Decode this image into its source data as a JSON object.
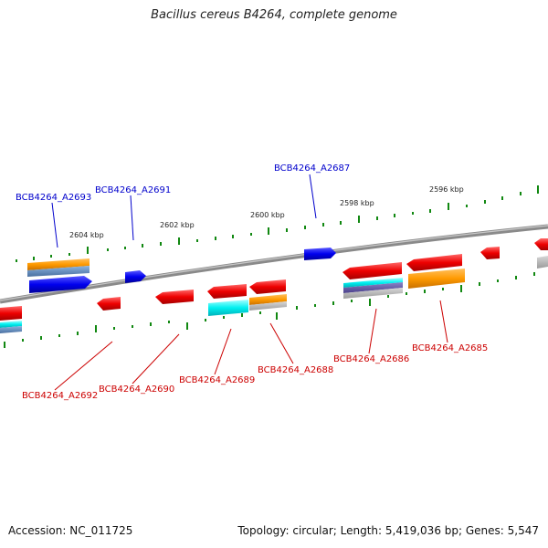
{
  "title": "Bacillus cereus B4264, complete genome",
  "footer": {
    "accession": "Accession: NC_011725",
    "summary": "Topology: circular; Length: 5,419,036 bp; Genes: 5,547"
  },
  "ticks": [
    "2604 kbp",
    "2602 kbp",
    "2600 kbp",
    "2598 kbp",
    "2596 kbp"
  ],
  "genes_top": [
    "BCB4264_A2693",
    "BCB4264_A2691",
    "BCB4264_A2687"
  ],
  "genes_bottom": [
    "BCB4264_A2692",
    "BCB4264_A2690",
    "BCB4264_A2689",
    "BCB4264_A2688",
    "BCB4264_A2686",
    "BCB4264_A2685"
  ],
  "colors": {
    "forward_gene": "#0000ee",
    "reverse_gene": "#ee0000",
    "top_label": "#0000cc",
    "bottom_label": "#cc0000",
    "backbone": "#888888",
    "tick": "#118811"
  }
}
